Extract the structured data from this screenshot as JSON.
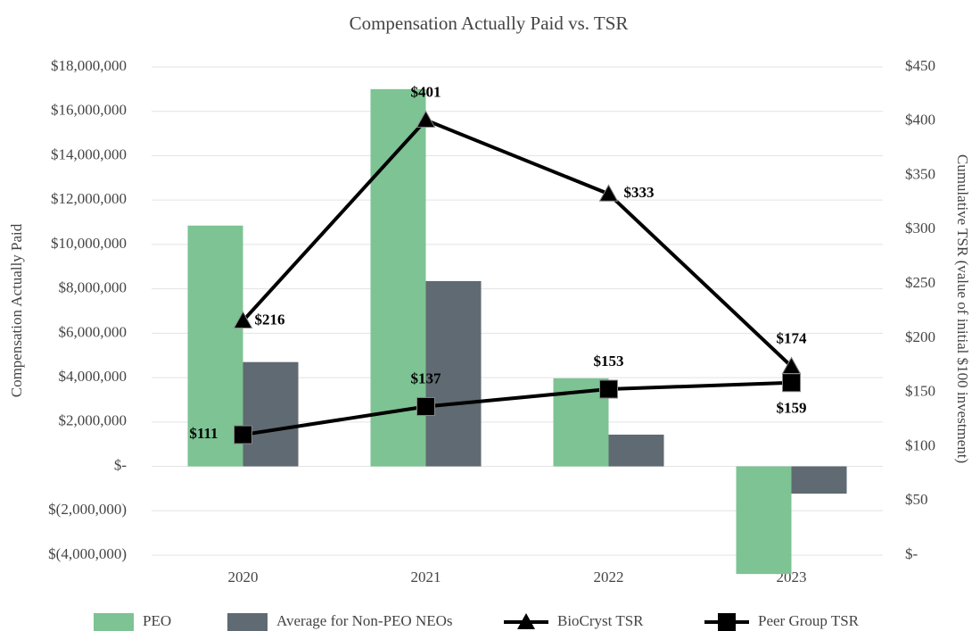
{
  "chart_data": {
    "type": "bar",
    "title": "Compensation Actually Paid vs. TSR",
    "y_label": "Compensation Actually Paid",
    "y2_label": "Cumulative TSR (value of initial $100 investment)",
    "categories": [
      "2020",
      "2021",
      "2022",
      "2023"
    ],
    "ylim": [
      -4000000,
      18000000
    ],
    "yticks": [
      {
        "value": -4000000,
        "label": "$(4,000,000)"
      },
      {
        "value": -2000000,
        "label": "$(2,000,000)"
      },
      {
        "value": 0,
        "label": "$-"
      },
      {
        "value": 2000000,
        "label": "$2,000,000"
      },
      {
        "value": 4000000,
        "label": "$4,000,000"
      },
      {
        "value": 6000000,
        "label": "$6,000,000"
      },
      {
        "value": 8000000,
        "label": "$8,000,000"
      },
      {
        "value": 10000000,
        "label": "$10,000,000"
      },
      {
        "value": 12000000,
        "label": "$12,000,000"
      },
      {
        "value": 14000000,
        "label": "$14,000,000"
      },
      {
        "value": 16000000,
        "label": "$16,000,000"
      },
      {
        "value": 18000000,
        "label": "$18,000,000"
      }
    ],
    "y2lim": [
      0,
      450
    ],
    "y2ticks": [
      {
        "value": 0,
        "label": "$-"
      },
      {
        "value": 50,
        "label": "$50"
      },
      {
        "value": 100,
        "label": "$100"
      },
      {
        "value": 150,
        "label": "$150"
      },
      {
        "value": 200,
        "label": "$200"
      },
      {
        "value": 250,
        "label": "$250"
      },
      {
        "value": 300,
        "label": "$300"
      },
      {
        "value": 350,
        "label": "$350"
      },
      {
        "value": 400,
        "label": "$400"
      },
      {
        "value": 450,
        "label": "$450"
      }
    ],
    "grid": true,
    "legend": "bottom",
    "series": [
      {
        "name": "PEO",
        "type": "bar",
        "color": "#7dc393",
        "values": [
          10850000,
          17000000,
          3970000,
          -4850000
        ]
      },
      {
        "name": "Average for Non-PEO NEOs",
        "type": "bar",
        "color": "#5f6a72",
        "values": [
          4700000,
          8350000,
          1430000,
          -1230000
        ]
      },
      {
        "name": "BioCryst TSR",
        "type": "line",
        "axis": "y2",
        "marker": "triangle",
        "color": "#000000",
        "values": [
          216,
          401,
          333,
          174
        ],
        "value_labels": [
          "$216",
          "$401",
          "$333",
          "$174"
        ]
      },
      {
        "name": "Peer Group TSR",
        "type": "line",
        "axis": "y2",
        "marker": "square",
        "color": "#000000",
        "values": [
          111,
          137,
          153,
          159
        ],
        "value_labels": [
          "$111",
          "$137",
          "$153",
          "$159"
        ]
      }
    ]
  }
}
